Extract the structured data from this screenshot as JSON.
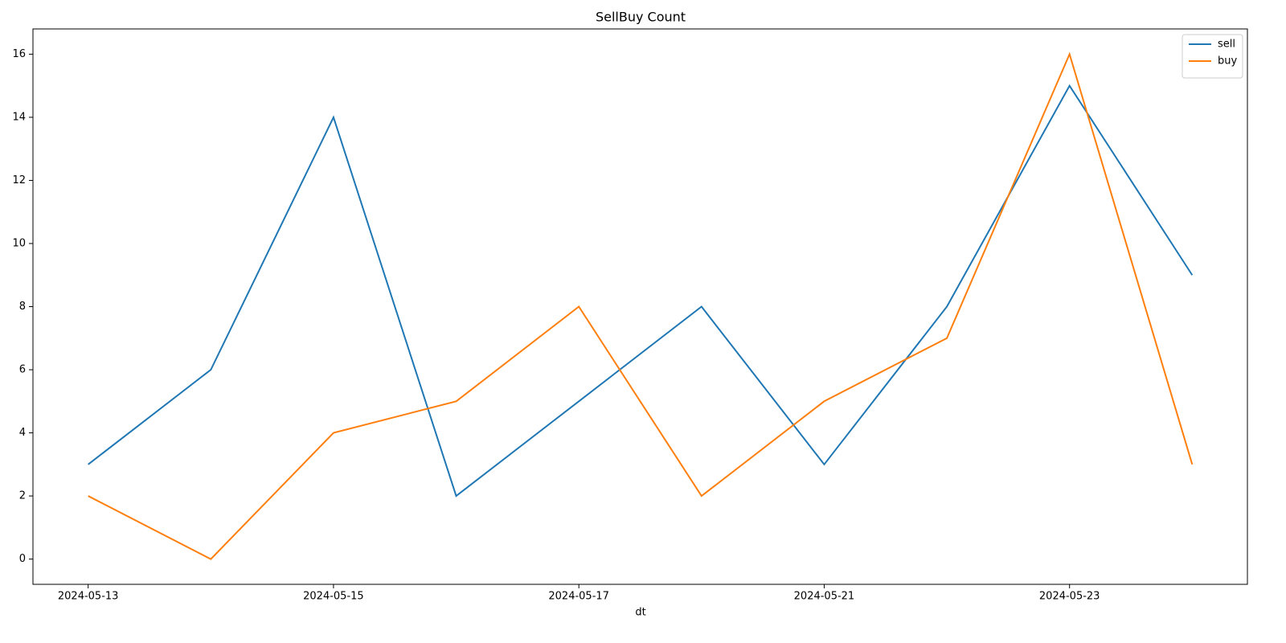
{
  "chart_data": {
    "type": "line",
    "title": "SellBuy Count",
    "x_label": "dt",
    "categories": [
      "2024-05-13",
      null,
      "2024-05-15",
      null,
      "2024-05-17",
      null,
      "2024-05-21",
      null,
      "2024-05-23",
      null
    ],
    "series": [
      {
        "name": "sell",
        "color": "#1f77b4",
        "values": [
          3,
          6,
          14,
          2,
          5,
          8,
          3,
          8,
          15,
          9
        ]
      },
      {
        "name": "buy",
        "color": "#ff7f0e",
        "values": [
          2,
          0,
          4,
          5,
          8,
          2,
          5,
          7,
          16,
          3
        ]
      }
    ],
    "ylim": [
      -0.8,
      16.8
    ],
    "yticks": [
      0,
      2,
      4,
      6,
      8,
      10,
      12,
      14,
      16
    ],
    "grid": false,
    "legend": "upper right"
  }
}
